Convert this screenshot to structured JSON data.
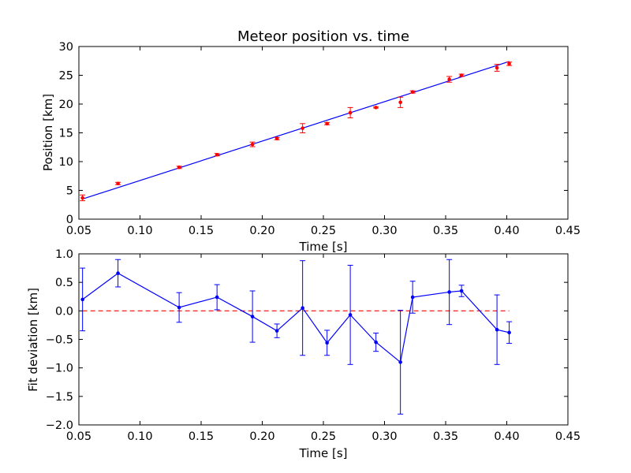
{
  "chart_data": [
    {
      "type": "scatter",
      "title": "Meteor position vs. time",
      "xlabel": "Time [s]",
      "ylabel": "Position [km]",
      "xlim": [
        0.05,
        0.45
      ],
      "ylim": [
        0,
        30
      ],
      "xticks": [
        "0.05",
        "0.10",
        "0.15",
        "0.20",
        "0.25",
        "0.30",
        "0.35",
        "0.40",
        "0.45"
      ],
      "yticks": [
        "0",
        "5",
        "10",
        "15",
        "20",
        "25",
        "30"
      ],
      "grid": false,
      "colors": {
        "points": "#ff0000",
        "fit": "#0000ff"
      },
      "series": [
        {
          "kind": "points-with-errorbars",
          "x": [
            0.053,
            0.082,
            0.132,
            0.163,
            0.192,
            0.212,
            0.233,
            0.253,
            0.272,
            0.293,
            0.313,
            0.323,
            0.353,
            0.363,
            0.392,
            0.402
          ],
          "y": [
            3.7,
            6.2,
            9.0,
            11.2,
            13.0,
            14.0,
            15.8,
            16.6,
            18.5,
            19.4,
            20.3,
            22.1,
            24.3,
            25.0,
            26.3,
            27.0
          ],
          "err": [
            0.5,
            0.2,
            0.2,
            0.2,
            0.4,
            0.2,
            0.8,
            0.2,
            0.9,
            0.1,
            0.9,
            0.2,
            0.5,
            0.2,
            0.6,
            0.3
          ]
        },
        {
          "kind": "fit-line",
          "x": [
            0.053,
            0.402
          ],
          "y": [
            3.5,
            27.4
          ]
        }
      ]
    },
    {
      "type": "line",
      "xlabel": "Time [s]",
      "ylabel": "Fit deviation [km]",
      "xlim": [
        0.05,
        0.45
      ],
      "ylim": [
        -2.0,
        1.0
      ],
      "xticks": [
        "0.05",
        "0.10",
        "0.15",
        "0.20",
        "0.25",
        "0.30",
        "0.35",
        "0.40",
        "0.45"
      ],
      "yticks": [
        "−2.0",
        "−1.5",
        "−1.0",
        "−0.5",
        "0.0",
        "0.5",
        "1.0"
      ],
      "grid": false,
      "colors": {
        "series": "#0000ff",
        "zero_line": "#ff0000"
      },
      "series": [
        {
          "kind": "line-with-errorbars",
          "x": [
            0.053,
            0.082,
            0.132,
            0.163,
            0.192,
            0.212,
            0.233,
            0.253,
            0.272,
            0.293,
            0.313,
            0.323,
            0.353,
            0.363,
            0.392,
            0.402
          ],
          "y": [
            0.2,
            0.66,
            0.06,
            0.24,
            -0.1,
            -0.35,
            0.05,
            -0.56,
            -0.07,
            -0.55,
            -0.9,
            0.24,
            0.33,
            0.35,
            -0.33,
            -0.38
          ],
          "err": [
            0.55,
            0.24,
            0.26,
            0.22,
            0.45,
            0.12,
            0.83,
            0.22,
            0.87,
            0.16,
            0.91,
            0.28,
            0.57,
            0.1,
            0.61,
            0.19
          ]
        },
        {
          "kind": "zero-reference",
          "x": [
            0.053,
            0.402
          ],
          "y": [
            0.0,
            0.0
          ]
        }
      ]
    }
  ]
}
